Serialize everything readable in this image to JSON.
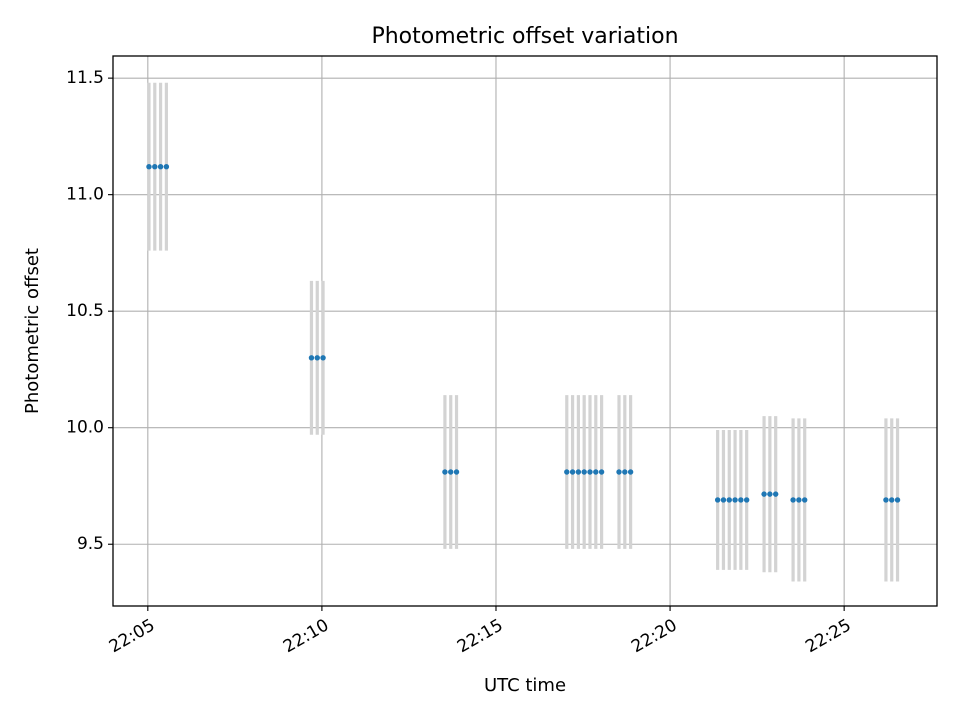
{
  "chart_data": {
    "type": "scatter",
    "title": "Photometric offset variation",
    "xlabel": "UTC time",
    "ylabel": "Photometric offset",
    "xlim": [
      "22:04:00",
      "22:27:40"
    ],
    "ylim": [
      9.235,
      11.595
    ],
    "x_tick_labels": [
      "22:05",
      "22:10",
      "22:15",
      "22:20",
      "22:25"
    ],
    "x_tick_values": [
      "22:05:00",
      "22:10:00",
      "22:15:00",
      "22:20:00",
      "22:25:00"
    ],
    "y_tick_labels": [
      "9.5",
      "10.0",
      "10.5",
      "11.0",
      "11.5"
    ],
    "y_tick_values": [
      9.5,
      10.0,
      10.5,
      11.0,
      11.5
    ],
    "grid": true,
    "point_color": "#1f77b4",
    "errorbar_color": "#d3d3d3",
    "points": [
      {
        "x": "22:05:02",
        "y": 11.12,
        "yerr": 0.36
      },
      {
        "x": "22:05:12",
        "y": 11.12,
        "yerr": 0.36
      },
      {
        "x": "22:05:22",
        "y": 11.12,
        "yerr": 0.36
      },
      {
        "x": "22:05:32",
        "y": 11.12,
        "yerr": 0.36
      },
      {
        "x": "22:09:42",
        "y": 10.3,
        "yerr": 0.33
      },
      {
        "x": "22:09:52",
        "y": 10.3,
        "yerr": 0.33
      },
      {
        "x": "22:10:02",
        "y": 10.3,
        "yerr": 0.33
      },
      {
        "x": "22:13:32",
        "y": 9.81,
        "yerr": 0.33
      },
      {
        "x": "22:13:42",
        "y": 9.81,
        "yerr": 0.33
      },
      {
        "x": "22:13:52",
        "y": 9.81,
        "yerr": 0.33
      },
      {
        "x": "22:17:02",
        "y": 9.81,
        "yerr": 0.33
      },
      {
        "x": "22:17:12",
        "y": 9.81,
        "yerr": 0.33
      },
      {
        "x": "22:17:22",
        "y": 9.81,
        "yerr": 0.33
      },
      {
        "x": "22:17:32",
        "y": 9.81,
        "yerr": 0.33
      },
      {
        "x": "22:17:42",
        "y": 9.81,
        "yerr": 0.33
      },
      {
        "x": "22:17:52",
        "y": 9.81,
        "yerr": 0.33
      },
      {
        "x": "22:18:02",
        "y": 9.81,
        "yerr": 0.33
      },
      {
        "x": "22:18:32",
        "y": 9.81,
        "yerr": 0.33
      },
      {
        "x": "22:18:42",
        "y": 9.81,
        "yerr": 0.33
      },
      {
        "x": "22:18:52",
        "y": 9.81,
        "yerr": 0.33
      },
      {
        "x": "22:21:22",
        "y": 9.69,
        "yerr": 0.3
      },
      {
        "x": "22:21:32",
        "y": 9.69,
        "yerr": 0.3
      },
      {
        "x": "22:21:42",
        "y": 9.69,
        "yerr": 0.3
      },
      {
        "x": "22:21:52",
        "y": 9.69,
        "yerr": 0.3
      },
      {
        "x": "22:22:02",
        "y": 9.69,
        "yerr": 0.3
      },
      {
        "x": "22:22:12",
        "y": 9.69,
        "yerr": 0.3
      },
      {
        "x": "22:22:42",
        "y": 9.715,
        "yerr": 0.335
      },
      {
        "x": "22:22:52",
        "y": 9.715,
        "yerr": 0.335
      },
      {
        "x": "22:23:02",
        "y": 9.715,
        "yerr": 0.335
      },
      {
        "x": "22:23:32",
        "y": 9.69,
        "yerr": 0.35
      },
      {
        "x": "22:23:42",
        "y": 9.69,
        "yerr": 0.35
      },
      {
        "x": "22:23:52",
        "y": 9.69,
        "yerr": 0.35
      },
      {
        "x": "22:26:12",
        "y": 9.69,
        "yerr": 0.35
      },
      {
        "x": "22:26:22",
        "y": 9.69,
        "yerr": 0.35
      },
      {
        "x": "22:26:32",
        "y": 9.69,
        "yerr": 0.35
      }
    ]
  }
}
